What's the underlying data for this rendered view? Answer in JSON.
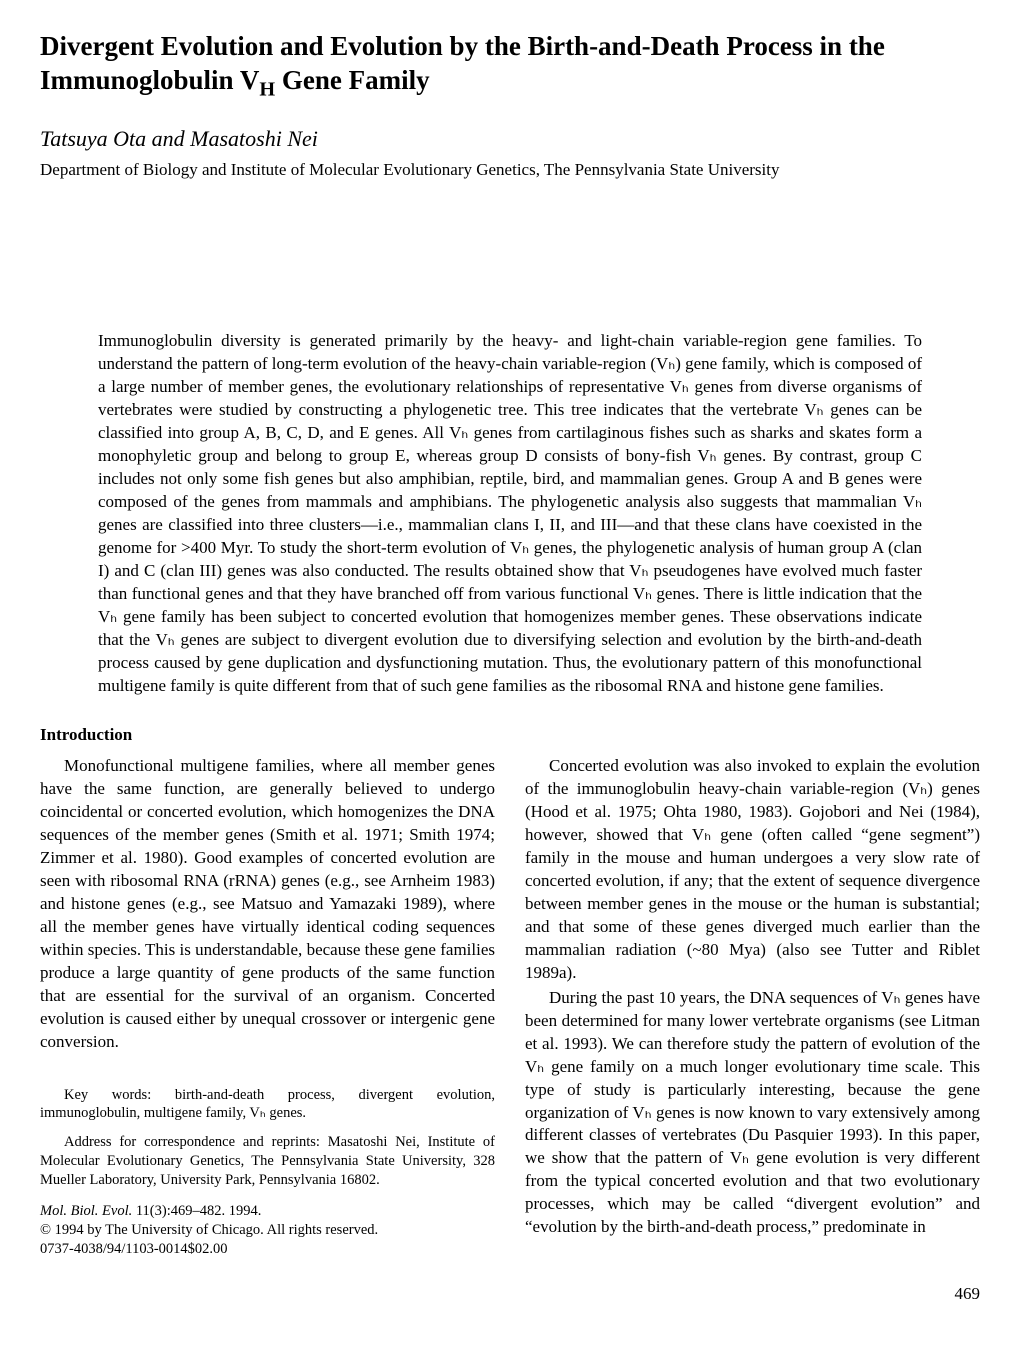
{
  "title_line1": "Divergent Evolution and Evolution by the Birth-and-Death Process in the",
  "title_line2": "Immunoglobulin V",
  "title_sub": "H",
  "title_line2_end": " Gene Family",
  "authors": "Tatsuya Ota and Masatoshi Nei",
  "affiliation": "Department of Biology and Institute of Molecular Evolutionary Genetics, The Pennsylvania State University",
  "abstract": "Immunoglobulin diversity is generated primarily by the heavy- and light-chain variable-region gene families. To understand the pattern of long-term evolution of the heavy-chain variable-region (Vₕ) gene family, which is composed of a large number of member genes, the evolutionary relationships of representative Vₕ genes from diverse organisms of vertebrates were studied by constructing a phylogenetic tree. This tree indicates that the vertebrate Vₕ genes can be classified into group A, B, C, D, and E genes. All Vₕ genes from cartilaginous fishes such as sharks and skates form a monophyletic group and belong to group E, whereas group D consists of bony-fish Vₕ genes. By contrast, group C includes not only some fish genes but also amphibian, reptile, bird, and mammalian genes. Group A and B genes were composed of the genes from mammals and amphibians. The phylogenetic analysis also suggests that mammalian Vₕ genes are classified into three clusters—i.e., mammalian clans I, II, and III—and that these clans have coexisted in the genome for >400 Myr. To study the short-term evolution of Vₕ genes, the phylogenetic analysis of human group A (clan I) and C (clan III) genes was also conducted. The results obtained show that Vₕ pseudogenes have evolved much faster than functional genes and that they have branched off from various functional Vₕ genes. There is little indication that the Vₕ gene family has been subject to concerted evolution that homogenizes member genes. These observations indicate that the Vₕ genes are subject to divergent evolution due to diversifying selection and evolution by the birth-and-death process caused by gene duplication and dysfunctioning mutation. Thus, the evolutionary pattern of this monofunctional multigene family is quite different from that of such gene families as the ribosomal RNA and histone gene families.",
  "intro_heading": "Introduction",
  "para1": "Monofunctional multigene families, where all member genes have the same function, are generally believed to undergo coincidental or concerted evolution, which homogenizes the DNA sequences of the member genes (Smith et al. 1971; Smith 1974; Zimmer et al. 1980). Good examples of concerted evolution are seen with ribosomal RNA (rRNA) genes (e.g., see Arnheim 1983) and histone genes (e.g., see Matsuo and Yamazaki 1989), where all the member genes have virtually identical coding sequences within species. This is understandable, because these gene families produce a large quantity of gene products of the same function that are essential for the survival of an organism. Concerted evolution is caused either by unequal crossover or intergenic gene conversion.",
  "keywords": "Key words: birth-and-death process, divergent evolution, immunoglobulin, multigene family, Vₕ genes.",
  "address": "Address for correspondence and reprints: Masatoshi Nei, Institute of Molecular Evolutionary Genetics, The Pennsylvania State University, 328 Mueller Laboratory, University Park, Pennsylvania 16802.",
  "citation_line1_ital": "Mol. Biol. Evol.",
  "citation_line1_rest": " 11(3):469–482. 1994.",
  "citation_line2": "© 1994 by The University of Chicago. All rights reserved.",
  "citation_line3": "0737-4038/94/1103-0014$02.00",
  "para2": "Concerted evolution was also invoked to explain the evolution of the immunoglobulin heavy-chain variable-region (Vₕ) genes (Hood et al. 1975; Ohta 1980, 1983). Gojobori and Nei (1984), however, showed that Vₕ gene (often called “gene segment”) family in the mouse and human undergoes a very slow rate of concerted evolution, if any; that the extent of sequence divergence between member genes in the mouse or the human is substantial; and that some of these genes diverged much earlier than the mammalian radiation (~80 Mya) (also see Tutter and Riblet 1989a).",
  "para3": "During the past 10 years, the DNA sequences of Vₕ genes have been determined for many lower vertebrate organisms (see Litman et al. 1993). We can therefore study the pattern of evolution of the Vₕ gene family on a much longer evolutionary time scale. This type of study is particularly interesting, because the gene organization of Vₕ genes is now known to vary extensively among different classes of vertebrates (Du Pasquier 1993). In this paper, we show that the pattern of Vₕ gene evolution is very different from the typical concerted evolution and that two evolutionary processes, which may be called “divergent evolution” and “evolution by the birth-and-death process,” predominate in",
  "page_number": "469"
}
